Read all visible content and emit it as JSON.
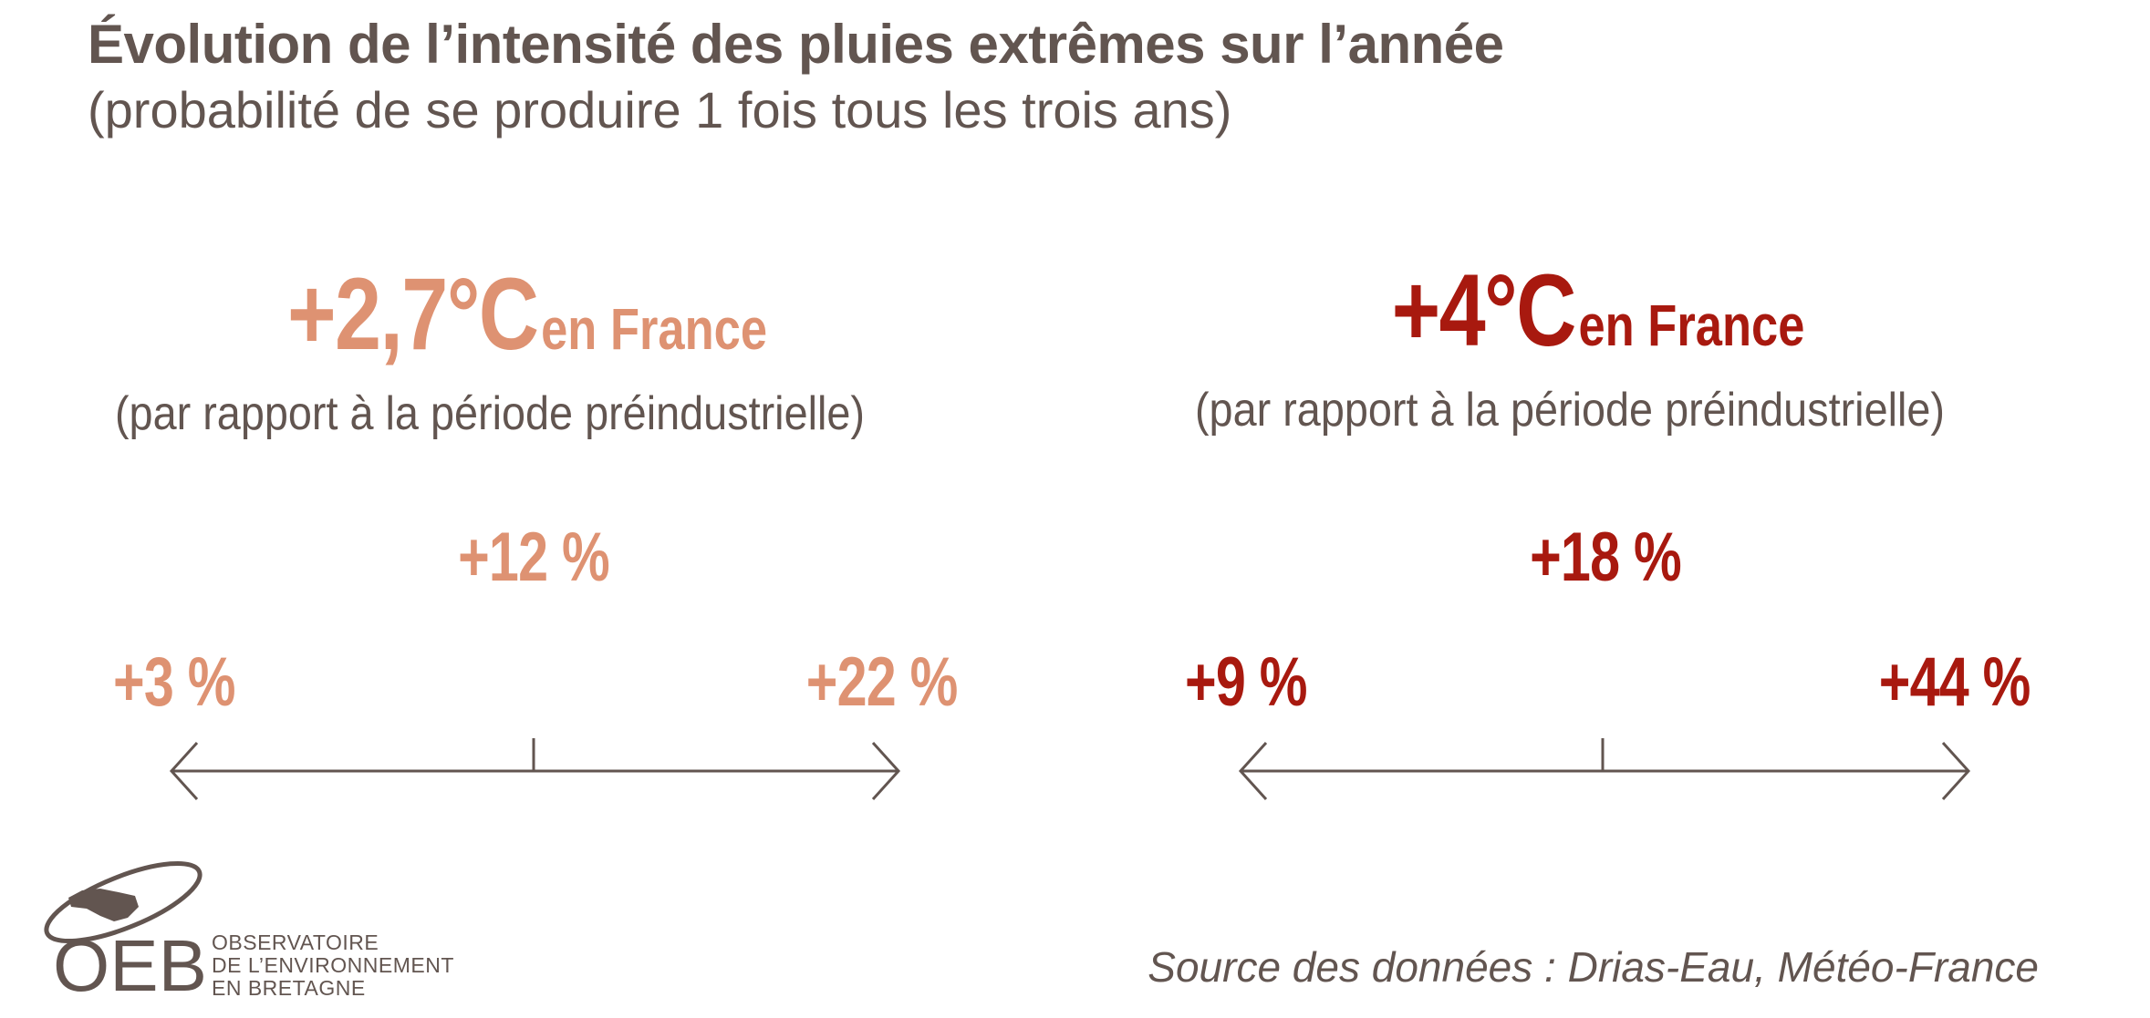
{
  "title": "Évolution de l’intensité des pluies extrêmes sur l’année",
  "subtitle": "(probabilité de se produire 1 fois tous les trois ans)",
  "colors": {
    "text": "#625550",
    "scenario_1": "#de9272",
    "scenario_2": "#a8190f"
  },
  "scenarios": [
    {
      "warming": "+2,7°C",
      "region": "en France",
      "reference": "(par rapport à la période préindustrielle)",
      "median": "+12 %",
      "low": "+3 %",
      "high": "+22 %"
    },
    {
      "warming": "+4°C",
      "region": "en France",
      "reference": "(par rapport à la période préindustrielle)",
      "median": "+18 %",
      "low": "+9 %",
      "high": "+44 %"
    }
  ],
  "source": "Source des données : Drias-Eau, Météo-France",
  "logo": {
    "acronym": "OEB",
    "lines": [
      "OBSERVATOIRE",
      "DE L’ENVIRONNEMENT",
      "EN BRETAGNE"
    ]
  }
}
